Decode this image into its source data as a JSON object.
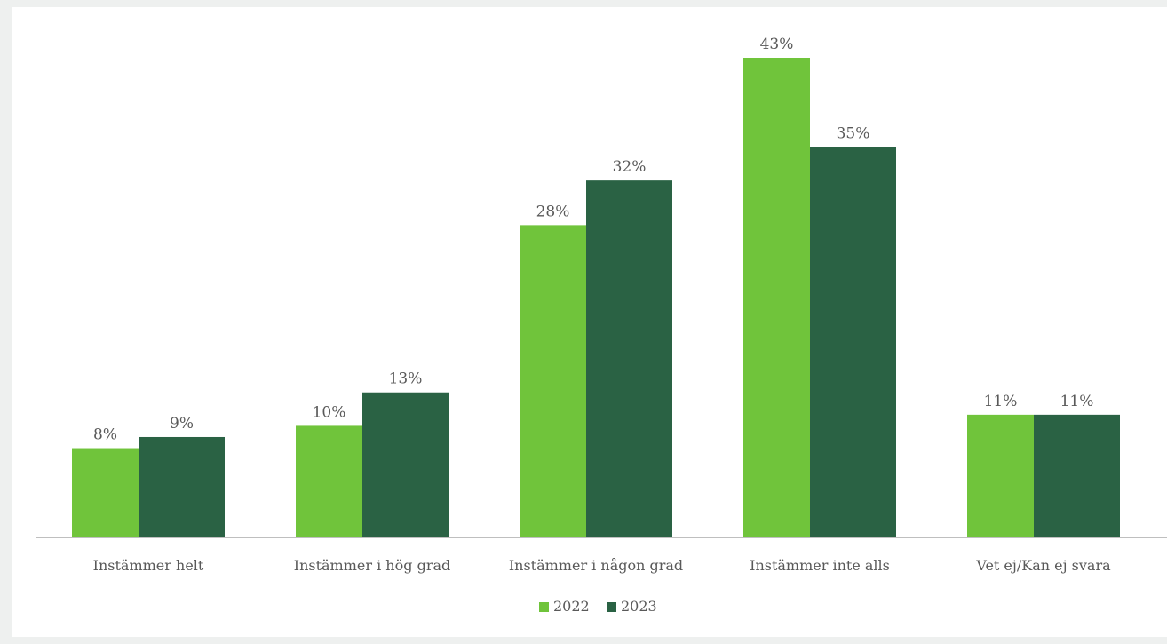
{
  "chart_data": {
    "type": "bar",
    "categories": [
      "Instämmer  helt",
      "Instämmer  i hög grad",
      "Instämmer  i någon grad",
      "Instämmer  inte alls",
      "Vet ej/Kan ej svara"
    ],
    "series": [
      {
        "name": "2022",
        "color": "#70c43b",
        "values": [
          8,
          10,
          28,
          43,
          11
        ],
        "labels": [
          "8%",
          "10%",
          "28%",
          "43%",
          "11%"
        ]
      },
      {
        "name": "2023",
        "color": "#2a6244",
        "values": [
          9,
          13,
          32,
          35,
          11
        ],
        "labels": [
          "9%",
          "13%",
          "32%",
          "35%",
          "11%"
        ]
      }
    ],
    "ylim": [
      0,
      43
    ],
    "grid": false,
    "legend_position": "bottom"
  }
}
